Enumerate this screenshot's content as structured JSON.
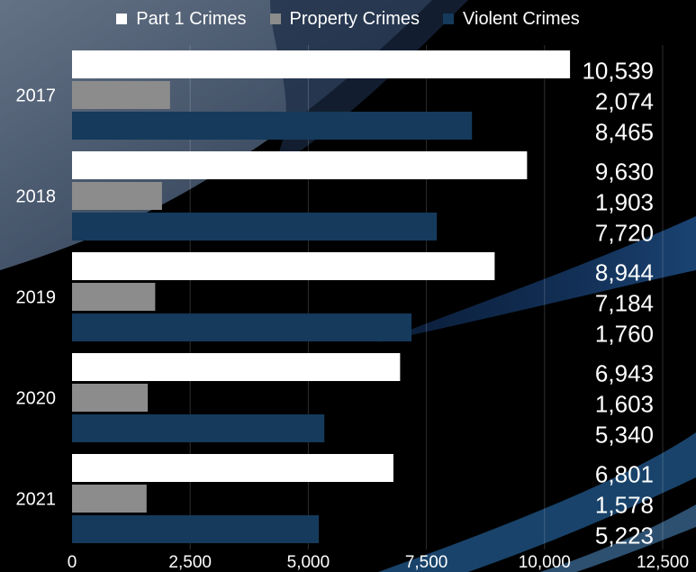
{
  "legend": {
    "items": [
      {
        "label": "Part 1 Crimes",
        "color": "#ffffff"
      },
      {
        "label": "Property Crimes",
        "color": "#8c8c8c"
      },
      {
        "label": "Violent Crimes",
        "color": "#153a5c"
      }
    ]
  },
  "chart_data": {
    "type": "bar",
    "orientation": "horizontal",
    "categories": [
      "2017",
      "2018",
      "2019",
      "2020",
      "2021"
    ],
    "series": [
      {
        "name": "Part 1 Crimes",
        "color": "#ffffff",
        "values": [
          10539,
          9630,
          8944,
          6943,
          6801
        ]
      },
      {
        "name": "Property Crimes",
        "color": "#8c8c8c",
        "values": [
          2074,
          1903,
          1760,
          1603,
          1578
        ]
      },
      {
        "name": "Violent Crimes",
        "color": "#153a5c",
        "values": [
          8465,
          7720,
          7184,
          5340,
          5223
        ]
      }
    ],
    "data_labels": [
      [
        "10,539",
        "2,074",
        "8,465"
      ],
      [
        "9,630",
        "1,903",
        "7,720"
      ],
      [
        "8,944",
        "7,184",
        "1,760"
      ],
      [
        "6,943",
        "1,603",
        "5,340"
      ],
      [
        "6,801",
        "1,578",
        "5,223"
      ]
    ],
    "x_ticks": [
      "0",
      "2,500",
      "5,000",
      "7,500",
      "10,000",
      "12,500"
    ],
    "xlim": [
      0,
      12500
    ],
    "grid": true,
    "legend_position": "top",
    "title": "",
    "xlabel": "",
    "ylabel": ""
  }
}
